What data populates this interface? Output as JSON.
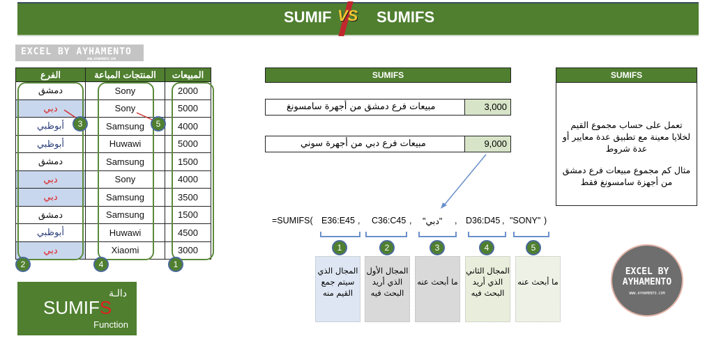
{
  "banner": {
    "left": "SUMIF",
    "vs": "VS",
    "right": "SUMIFS"
  },
  "logo": {
    "text": "EXCEL BY AYHAMENTO",
    "url": "WWW.AYHAMENTO.COM"
  },
  "table": {
    "headers": {
      "branch": "الفرع",
      "products": "المنتجات المباعة",
      "sales": "المبيعات"
    },
    "rows": [
      {
        "branch": "دمشق",
        "product": "Sony",
        "sales": "2000"
      },
      {
        "branch": "دبي",
        "product": "Sony",
        "sales": "5000"
      },
      {
        "branch": "أبوظبي",
        "product": "Samsung",
        "sales": "4000"
      },
      {
        "branch": "أبوظبي",
        "product": "Huwawi",
        "sales": "5000"
      },
      {
        "branch": "دمشق",
        "product": "Samsung",
        "sales": "1500"
      },
      {
        "branch": "دبي",
        "product": "Sony",
        "sales": "4000"
      },
      {
        "branch": "دبي",
        "product": "Samsung",
        "sales": "3500"
      },
      {
        "branch": "دمشق",
        "product": "Samsung",
        "sales": "1500"
      },
      {
        "branch": "أبوظبي",
        "product": "Huwawi",
        "sales": "4500"
      },
      {
        "branch": "دبي",
        "product": "Xiaomi",
        "sales": "3000"
      }
    ]
  },
  "markers": {
    "n1": "1",
    "n2": "2",
    "n3": "3",
    "n4": "4",
    "n5": "5"
  },
  "examples": {
    "title": "SUMIFS",
    "q1": {
      "label": "مبيعات فرع دمشق من أجهرة سامسونغ",
      "value": "3,000"
    },
    "q2": {
      "label": "مبيعات فرع دبي من أجهرة سوني",
      "value": "9,000"
    }
  },
  "description": {
    "title": "SUMIFS",
    "p1": "تعمل على حساب مجموع القيم لخلايا معينة مع تطبيق عدة معايير أو عدة شروط",
    "p2": "مثال كم مجموع مبيعات فرع دمشق من أجهزة سامسونغ فقط"
  },
  "formula": {
    "start": "=SUMIFS(",
    "a1": "E36:E45",
    "c1": ",",
    "a2": "C36:C45",
    "c2": ",",
    "a3": "\"دبي\"",
    "c3": ",",
    "a4": "D36:D45",
    "c4": ",",
    "a5": "\"SONY\"",
    "end": ")"
  },
  "explanations": [
    "المجال الذي سيتم جمع القيم منه",
    "المجال الأول الذي أريد البحث فيه",
    "ما أبحث عنه",
    "المجال الثاني الذي أريد البحث فيه",
    "ما أبحث عنه"
  ],
  "func_card": {
    "arabic": "دالـة",
    "name": "SUMIF",
    "name_last": "S",
    "sub": "Function"
  },
  "brand_circle": {
    "line1": "EXCEL BY",
    "line2": "AYHAMENTO",
    "url": "WWW.AYHAMENTO.COM"
  },
  "colors": {
    "green": "#4f7f2f",
    "highlight": "#c9d7ee",
    "red": "#e02020"
  }
}
